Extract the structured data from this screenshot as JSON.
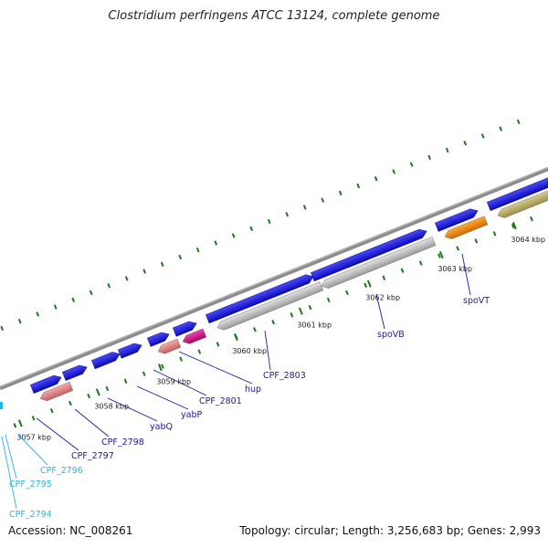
{
  "title": "Clostridium perfringens ATCC 13124, complete genome",
  "footer": {
    "accession": "Accession: NC_008261",
    "summary": "Topology: circular; Length: 3,256,683 bp; Genes: 2,993"
  },
  "colors": {
    "backbone": "#8c8c8c",
    "forward_gene": "#1414e6",
    "reverse_gray": "#bdbdbd",
    "reverse_salmon": "#ea8a8a",
    "reverse_magenta": "#e0108a",
    "reverse_orange": "#ff8800",
    "reverse_olive": "#bdb26a",
    "label_navy": "#1a1a9e",
    "label_cyan": "#27b6e3",
    "tick_green": "#1a7a1a"
  },
  "scale_labels": [
    "3057 kbp",
    "3058 kbp",
    "3059 kbp",
    "3060 kbp",
    "3061 kbp",
    "3062 kbp",
    "3063 kbp",
    "3064 kbp"
  ],
  "gene_labels": [
    {
      "text": "CPF_2794",
      "color": "cyan"
    },
    {
      "text": "CPF_2795",
      "color": "cyan"
    },
    {
      "text": "CPF_2796",
      "color": "cyan"
    },
    {
      "text": "CPF_2797",
      "color": "navy"
    },
    {
      "text": "CPF_2798",
      "color": "navy"
    },
    {
      "text": "yabQ",
      "color": "navy"
    },
    {
      "text": "yabP",
      "color": "navy"
    },
    {
      "text": "CPF_2801",
      "color": "navy"
    },
    {
      "text": "hup",
      "color": "navy"
    },
    {
      "text": "CPF_2803",
      "color": "navy"
    },
    {
      "text": "spoVB",
      "color": "navy"
    },
    {
      "text": "spoVT",
      "color": "navy"
    }
  ],
  "forward_genes": 10,
  "reverse_genes": [
    {
      "color": "salmon"
    },
    {
      "color": "salmon"
    },
    {
      "color": "magenta"
    },
    {
      "color": "gray"
    },
    {
      "color": "gray"
    },
    {
      "color": "orange"
    },
    {
      "color": "olive"
    }
  ]
}
